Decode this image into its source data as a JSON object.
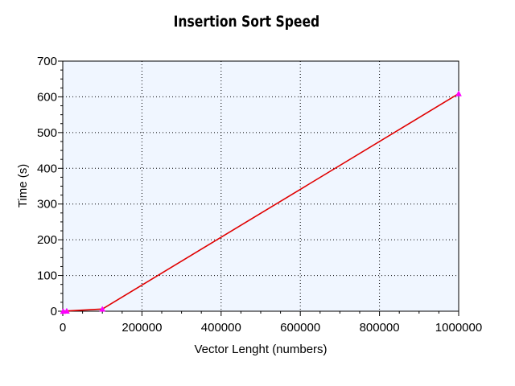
{
  "chart_data": {
    "type": "line",
    "title": "Insertion Sort Speed",
    "xlabel": "Vector Lenght (numbers)",
    "ylabel": "Time (s)",
    "xlim": [
      0,
      1000000
    ],
    "ylim": [
      0,
      700
    ],
    "xticks": [
      0,
      200000,
      400000,
      600000,
      800000,
      1000000
    ],
    "yticks": [
      0,
      100,
      200,
      300,
      400,
      500,
      600,
      700
    ],
    "grid": true,
    "series": [
      {
        "x": [
          1000,
          10000,
          100000,
          1000000
        ],
        "y": [
          0,
          0.6,
          6,
          609
        ]
      }
    ],
    "colors": {
      "plot_background": "#f0f6ff",
      "line": "#e00000",
      "marker": "#ff00ff"
    }
  }
}
